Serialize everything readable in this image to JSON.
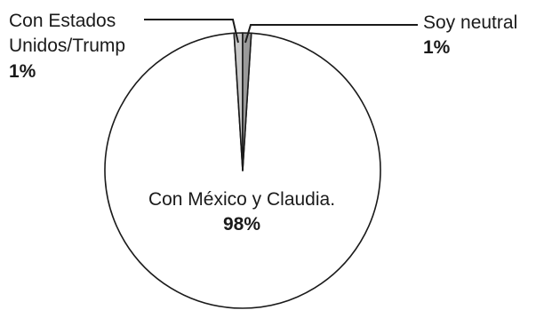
{
  "chart_data": {
    "type": "pie",
    "categories": [
      "Con México y Claudia.",
      "Con Estados Unidos/Trump",
      "Soy neutral"
    ],
    "values": [
      98,
      1,
      1
    ],
    "value_labels": [
      "98%",
      "1%",
      "1%"
    ],
    "label_lines": [
      [
        "Con México y Claudia."
      ],
      [
        "Con Estados",
        "Unidos/Trump"
      ],
      [
        "Soy neutral"
      ]
    ],
    "colors": [
      "#ffffff",
      "#c8c8c8",
      "#9a9a9a"
    ],
    "stroke": "#1a1a1a",
    "title": "",
    "legend": "none"
  }
}
